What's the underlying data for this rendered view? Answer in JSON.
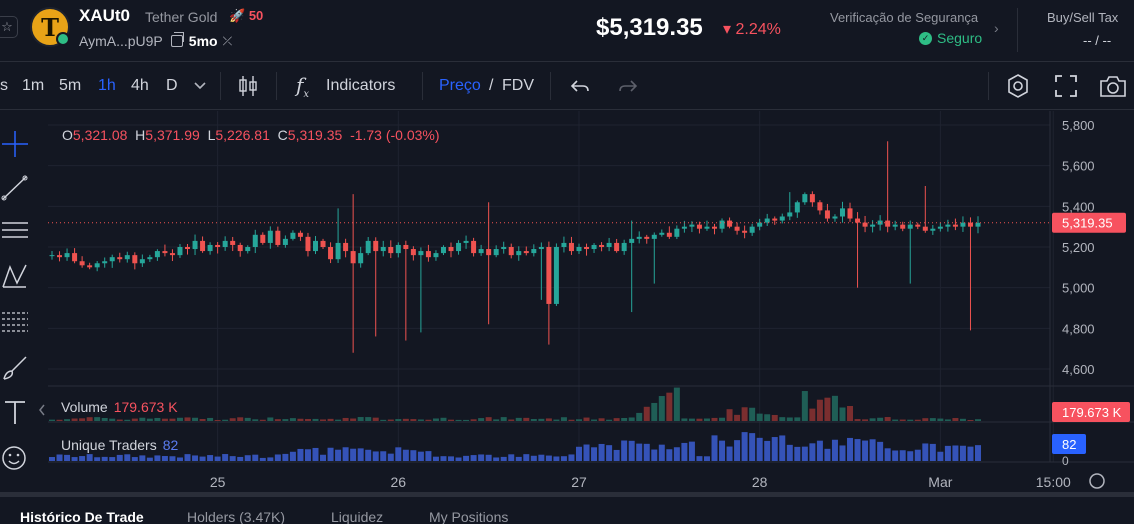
{
  "header": {
    "symbol": "XAUt0",
    "token_name": "Tether Gold",
    "boost_count": "50",
    "address_short": "AymA...pU9P",
    "age": "5mo",
    "price": "$5,319.35",
    "change": "2.24%",
    "security_title": "Verificação de Segurança",
    "security_status": "Seguro",
    "tax_title": "Buy/Sell Tax",
    "tax_value": "-- / --"
  },
  "toolbar": {
    "intervals": [
      "s",
      "1m",
      "5m",
      "1h",
      "4h",
      "D"
    ],
    "active_interval": "1h",
    "indicators_label": "Indicators",
    "price_label": "Preço",
    "slash": "/",
    "fdv_label": "FDV"
  },
  "ohlc": {
    "o_label": "O",
    "o": "5,321.08",
    "h_label": "H",
    "h": "5,371.99",
    "l_label": "L",
    "l": "5,226.81",
    "c_label": "C",
    "c": "5,319.35",
    "change": "-1.73 (-0.03%)"
  },
  "volume": {
    "label": "Volume",
    "value": "179.673 K"
  },
  "unique_traders": {
    "label": "Unique Traders",
    "value": "82"
  },
  "chart_data": {
    "type": "candlestick",
    "yticks": [
      "5,800",
      "5,600",
      "5,400",
      "5,200",
      "5,000",
      "4,800",
      "4,600"
    ],
    "ytick_values": [
      5800,
      5600,
      5400,
      5200,
      5000,
      4800,
      4600
    ],
    "ylim": [
      4530,
      5890
    ],
    "current_price_label": "5,319.35",
    "current_price": 5319.35,
    "volume_label": "179.673 K",
    "traders_label": "82",
    "traders_axis_zero": "0",
    "xticks": [
      "25",
      "26",
      "27",
      "28",
      "Mar",
      "15:00"
    ],
    "xtick_hours": [
      22,
      46,
      70,
      94,
      118,
      133
    ],
    "n_candles": 124,
    "candles_seed": [
      5160,
      5150,
      5170,
      5130,
      5110,
      5100,
      5120,
      5130,
      5150,
      5140,
      5160,
      5120,
      5140,
      5150,
      5180,
      5170,
      5160,
      5200,
      5190,
      5230,
      5180,
      5210,
      5200,
      5230,
      5210,
      5180,
      5200,
      5260,
      5220,
      5280,
      5210,
      5240,
      5270,
      5250,
      5180,
      5230,
      5200,
      5140,
      5220,
      5180,
      5120,
      5170,
      5230,
      5180,
      5200,
      5170,
      5210,
      5190,
      5160,
      5180,
      5150,
      5170,
      5200,
      5180,
      5220,
      5230,
      5170,
      5190,
      5160,
      5190,
      5200,
      5160,
      5180,
      5170,
      5190,
      5200,
      4920,
      5200,
      5220,
      5180,
      5200,
      5190,
      5210,
      5200,
      5220,
      5180,
      5220,
      5240,
      5250,
      5240,
      5260,
      5270,
      5250,
      5290,
      5300,
      5310,
      5290,
      5300,
      5290,
      5330,
      5300,
      5280,
      5270,
      5300,
      5320,
      5340,
      5330,
      5350,
      5370,
      5420,
      5460,
      5420,
      5380,
      5340,
      5350,
      5390,
      5340,
      5320,
      5300,
      5310,
      5330,
      5300,
      5310,
      5290,
      5310,
      5300,
      5280,
      5290,
      5300,
      5310,
      5300,
      5320,
      5300,
      5319
    ]
  },
  "bottom_tabs": [
    "Histórico De Trade",
    "Holders (3.47K)",
    "Liquidez",
    "My Positions"
  ]
}
